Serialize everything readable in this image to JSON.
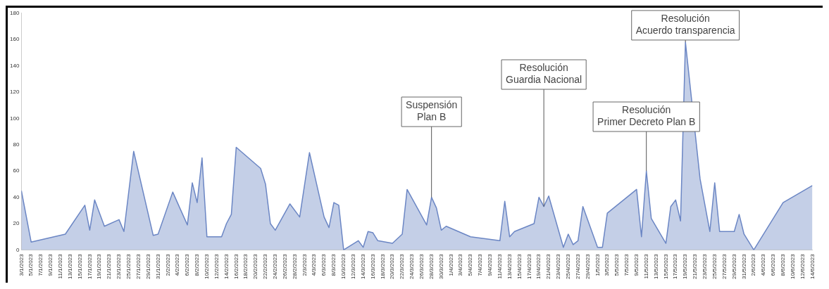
{
  "chart_data": {
    "type": "area",
    "grid": false,
    "legend": false,
    "xlim": [
      "2023-01-03",
      "2023-06-14"
    ],
    "ylim": [
      0,
      180
    ],
    "yticks": [
      0,
      20,
      40,
      60,
      80,
      100,
      120,
      140,
      160,
      180
    ],
    "xticks": [
      {
        "value": "2023-01-03",
        "label": "3/1/2023"
      },
      {
        "value": "2023-01-05",
        "label": "5/1/2023"
      },
      {
        "value": "2023-01-07",
        "label": "7/1/2023"
      },
      {
        "value": "2023-01-09",
        "label": "9/1/2023"
      },
      {
        "value": "2023-01-11",
        "label": "11/1/2023"
      },
      {
        "value": "2023-01-13",
        "label": "13/1/2023"
      },
      {
        "value": "2023-01-15",
        "label": "15/1/2023"
      },
      {
        "value": "2023-01-17",
        "label": "17/1/2023"
      },
      {
        "value": "2023-01-19",
        "label": "19/1/2023"
      },
      {
        "value": "2023-01-21",
        "label": "21/1/2023"
      },
      {
        "value": "2023-01-23",
        "label": "23/1/2023"
      },
      {
        "value": "2023-01-25",
        "label": "25/1/2023"
      },
      {
        "value": "2023-01-27",
        "label": "27/1/2023"
      },
      {
        "value": "2023-01-29",
        "label": "29/1/2023"
      },
      {
        "value": "2023-01-31",
        "label": "31/1/2023"
      },
      {
        "value": "2023-02-02",
        "label": "2/2/2023"
      },
      {
        "value": "2023-02-04",
        "label": "4/2/2023"
      },
      {
        "value": "2023-02-06",
        "label": "6/2/2023"
      },
      {
        "value": "2023-02-08",
        "label": "8/2/2023"
      },
      {
        "value": "2023-02-10",
        "label": "10/2/2023"
      },
      {
        "value": "2023-02-12",
        "label": "12/2/2023"
      },
      {
        "value": "2023-02-14",
        "label": "14/2/2023"
      },
      {
        "value": "2023-02-16",
        "label": "16/2/2023"
      },
      {
        "value": "2023-02-18",
        "label": "18/2/2023"
      },
      {
        "value": "2023-02-20",
        "label": "20/2/2023"
      },
      {
        "value": "2023-02-22",
        "label": "22/2/2023"
      },
      {
        "value": "2023-02-24",
        "label": "24/2/2023"
      },
      {
        "value": "2023-02-26",
        "label": "26/2/2023"
      },
      {
        "value": "2023-02-28",
        "label": "28/2/2023"
      },
      {
        "value": "2023-03-02",
        "label": "2/3/2023"
      },
      {
        "value": "2023-03-04",
        "label": "4/3/2023"
      },
      {
        "value": "2023-03-06",
        "label": "6/3/2023"
      },
      {
        "value": "2023-03-08",
        "label": "8/3/2023"
      },
      {
        "value": "2023-03-10",
        "label": "10/3/2023"
      },
      {
        "value": "2023-03-12",
        "label": "12/3/2023"
      },
      {
        "value": "2023-03-14",
        "label": "14/3/2023"
      },
      {
        "value": "2023-03-16",
        "label": "16/3/2023"
      },
      {
        "value": "2023-03-18",
        "label": "18/3/2023"
      },
      {
        "value": "2023-03-20",
        "label": "20/3/2023"
      },
      {
        "value": "2023-03-22",
        "label": "22/3/2023"
      },
      {
        "value": "2023-03-24",
        "label": "24/3/2023"
      },
      {
        "value": "2023-03-26",
        "label": "26/3/2023"
      },
      {
        "value": "2023-03-28",
        "label": "28/3/2023"
      },
      {
        "value": "2023-03-30",
        "label": "30/3/2023"
      },
      {
        "value": "2023-04-01",
        "label": "1/4/2023"
      },
      {
        "value": "2023-04-03",
        "label": "3/4/2023"
      },
      {
        "value": "2023-04-05",
        "label": "5/4/2023"
      },
      {
        "value": "2023-04-07",
        "label": "7/4/2023"
      },
      {
        "value": "2023-04-09",
        "label": "9/4/2023"
      },
      {
        "value": "2023-04-11",
        "label": "11/4/2023"
      },
      {
        "value": "2023-04-13",
        "label": "13/4/2023"
      },
      {
        "value": "2023-04-15",
        "label": "15/4/2023"
      },
      {
        "value": "2023-04-17",
        "label": "17/4/2023"
      },
      {
        "value": "2023-04-19",
        "label": "19/4/2023"
      },
      {
        "value": "2023-04-21",
        "label": "21/4/2023"
      },
      {
        "value": "2023-04-23",
        "label": "23/4/2023"
      },
      {
        "value": "2023-04-25",
        "label": "25/4/2023"
      },
      {
        "value": "2023-04-27",
        "label": "27/4/2023"
      },
      {
        "value": "2023-04-29",
        "label": "29/4/2023"
      },
      {
        "value": "2023-05-01",
        "label": "1/5/2023"
      },
      {
        "value": "2023-05-03",
        "label": "3/5/2023"
      },
      {
        "value": "2023-05-05",
        "label": "5/5/2023"
      },
      {
        "value": "2023-05-07",
        "label": "7/5/2023"
      },
      {
        "value": "2023-05-09",
        "label": "9/5/2023"
      },
      {
        "value": "2023-05-11",
        "label": "11/5/2023"
      },
      {
        "value": "2023-05-13",
        "label": "13/5/2023"
      },
      {
        "value": "2023-05-15",
        "label": "15/5/2023"
      },
      {
        "value": "2023-05-17",
        "label": "17/5/2023"
      },
      {
        "value": "2023-05-19",
        "label": "19/5/2023"
      },
      {
        "value": "2023-05-21",
        "label": "21/5/2023"
      },
      {
        "value": "2023-05-23",
        "label": "23/5/2023"
      },
      {
        "value": "2023-05-25",
        "label": "25/5/2023"
      },
      {
        "value": "2023-05-27",
        "label": "27/5/2023"
      },
      {
        "value": "2023-05-29",
        "label": "29/5/2023"
      },
      {
        "value": "2023-05-31",
        "label": "31/5/2023"
      },
      {
        "value": "2023-06-02",
        "label": "2/6/2023"
      },
      {
        "value": "2023-06-04",
        "label": "4/6/2023"
      },
      {
        "value": "2023-06-06",
        "label": "6/6/2023"
      },
      {
        "value": "2023-06-08",
        "label": "8/6/2023"
      },
      {
        "value": "2023-06-10",
        "label": "10/6/2023"
      },
      {
        "value": "2023-06-12",
        "label": "12/6/2023"
      },
      {
        "value": "2023-06-14",
        "label": "14/6/2023"
      }
    ],
    "series": [
      {
        "color": "#6b86c4",
        "x": [
          "2023-01-03",
          "2023-01-05",
          "2023-01-12",
          "2023-01-16",
          "2023-01-17",
          "2023-01-18",
          "2023-01-20",
          "2023-01-23",
          "2023-01-24",
          "2023-01-26",
          "2023-01-30",
          "2023-01-31",
          "2023-02-03",
          "2023-02-06",
          "2023-02-07",
          "2023-02-08",
          "2023-02-09",
          "2023-02-10",
          "2023-02-13",
          "2023-02-14",
          "2023-02-15",
          "2023-02-16",
          "2023-02-21",
          "2023-02-22",
          "2023-02-23",
          "2023-02-24",
          "2023-02-27",
          "2023-03-01",
          "2023-03-03",
          "2023-03-06",
          "2023-03-07",
          "2023-03-08",
          "2023-03-09",
          "2023-03-10",
          "2023-03-13",
          "2023-03-14",
          "2023-03-15",
          "2023-03-16",
          "2023-03-17",
          "2023-03-20",
          "2023-03-22",
          "2023-03-23",
          "2023-03-27",
          "2023-03-28",
          "2023-03-29",
          "2023-03-30",
          "2023-03-31",
          "2023-04-05",
          "2023-04-11",
          "2023-04-12",
          "2023-04-13",
          "2023-04-14",
          "2023-04-18",
          "2023-04-19",
          "2023-04-20",
          "2023-04-21",
          "2023-04-24",
          "2023-04-25",
          "2023-04-26",
          "2023-04-27",
          "2023-04-28",
          "2023-05-01",
          "2023-05-02",
          "2023-05-03",
          "2023-05-09",
          "2023-05-10",
          "2023-05-11",
          "2023-05-12",
          "2023-05-15",
          "2023-05-16",
          "2023-05-17",
          "2023-05-18",
          "2023-05-19",
          "2023-05-22",
          "2023-05-24",
          "2023-05-25",
          "2023-05-26",
          "2023-05-29",
          "2023-05-30",
          "2023-05-31",
          "2023-06-02",
          "2023-06-08",
          "2023-06-14"
        ],
        "values": [
          45,
          6,
          12,
          34,
          15,
          38,
          18,
          23,
          14,
          75,
          11,
          12,
          44,
          19,
          51,
          36,
          70,
          10,
          10,
          20,
          27,
          78,
          62,
          50,
          20,
          15,
          35,
          25,
          74,
          25,
          17,
          36,
          34,
          0,
          7,
          2,
          14,
          13,
          7,
          5,
          12,
          46,
          19,
          40,
          32,
          15,
          18,
          10,
          7,
          37,
          10,
          14,
          20,
          40,
          33,
          41,
          2,
          12,
          4,
          7,
          33,
          2,
          2,
          28,
          46,
          10,
          60,
          24,
          5,
          33,
          38,
          22,
          158,
          54,
          14,
          51,
          14,
          14,
          27,
          12,
          0,
          36,
          49
        ]
      }
    ],
    "annotations": [
      {
        "text": "Suspensión\nPlan B",
        "x": "2023-03-28",
        "y": 40
      },
      {
        "text": "Resolución\nGuardia Nacional",
        "x": "2023-04-20",
        "y": 33
      },
      {
        "text": "Resolución\nPrimer Decreto Plan B",
        "x": "2023-05-11",
        "y": 60
      },
      {
        "text": "Resolución\nAcuerdo transparencia",
        "x": "2023-05-19",
        "y": 158
      }
    ]
  }
}
